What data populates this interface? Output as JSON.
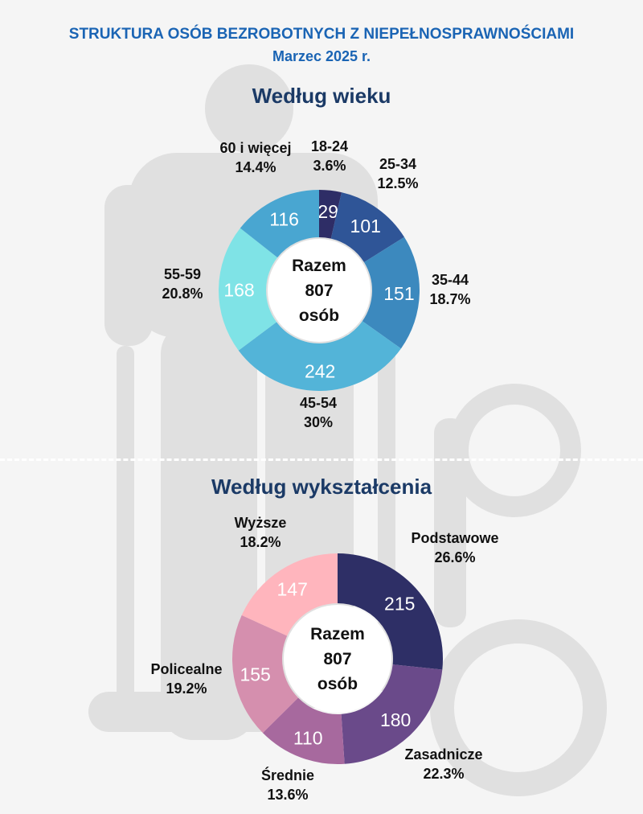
{
  "header": {
    "title": "STRUKTURA OSÓB BEZROBOTNYCH Z NIEPEŁNOSPRAWNOŚCIAMI",
    "subtitle": "Marzec 2025 r."
  },
  "colors": {
    "title": "#1a64b4",
    "section_title": "#1b3a66",
    "label": "#111111",
    "slice_text": "#ffffff"
  },
  "chart_data": [
    {
      "type": "pie",
      "donut": true,
      "title": "Według wieku",
      "center_label": [
        "Razem",
        "807",
        "osób"
      ],
      "slices": [
        {
          "name": "18-24",
          "value": 29,
          "percent": "3.6%",
          "color": "#2e2d66"
        },
        {
          "name": "25-34",
          "value": 101,
          "percent": "12.5%",
          "color": "#2f5597"
        },
        {
          "name": "35-44",
          "value": 151,
          "percent": "18.7%",
          "color": "#3c89be"
        },
        {
          "name": "45-54",
          "value": 242,
          "percent": "30%",
          "color": "#53b4d8"
        },
        {
          "name": "55-59",
          "value": 168,
          "percent": "20.8%",
          "color": "#7fe3e6"
        },
        {
          "name": "60 i więcej",
          "value": 116,
          "percent": "14.4%",
          "color": "#49a6d1"
        }
      ]
    },
    {
      "type": "pie",
      "donut": true,
      "title": "Według wykształcenia",
      "center_label": [
        "Razem",
        "807",
        "osób"
      ],
      "slices": [
        {
          "name": "Podstawowe",
          "value": 215,
          "percent": "26.6%",
          "color": "#2e2f66"
        },
        {
          "name": "Zasadnicze",
          "value": 180,
          "percent": "22.3%",
          "color": "#6a4a8a"
        },
        {
          "name": "Średnie",
          "value": 110,
          "percent": "13.6%",
          "color": "#a7699e"
        },
        {
          "name": "Policealne",
          "value": 155,
          "percent": "19.2%",
          "color": "#d58fae"
        },
        {
          "name": "Wyższe",
          "value": 147,
          "percent": "18.2%",
          "color": "#ffb5bd"
        }
      ]
    }
  ]
}
